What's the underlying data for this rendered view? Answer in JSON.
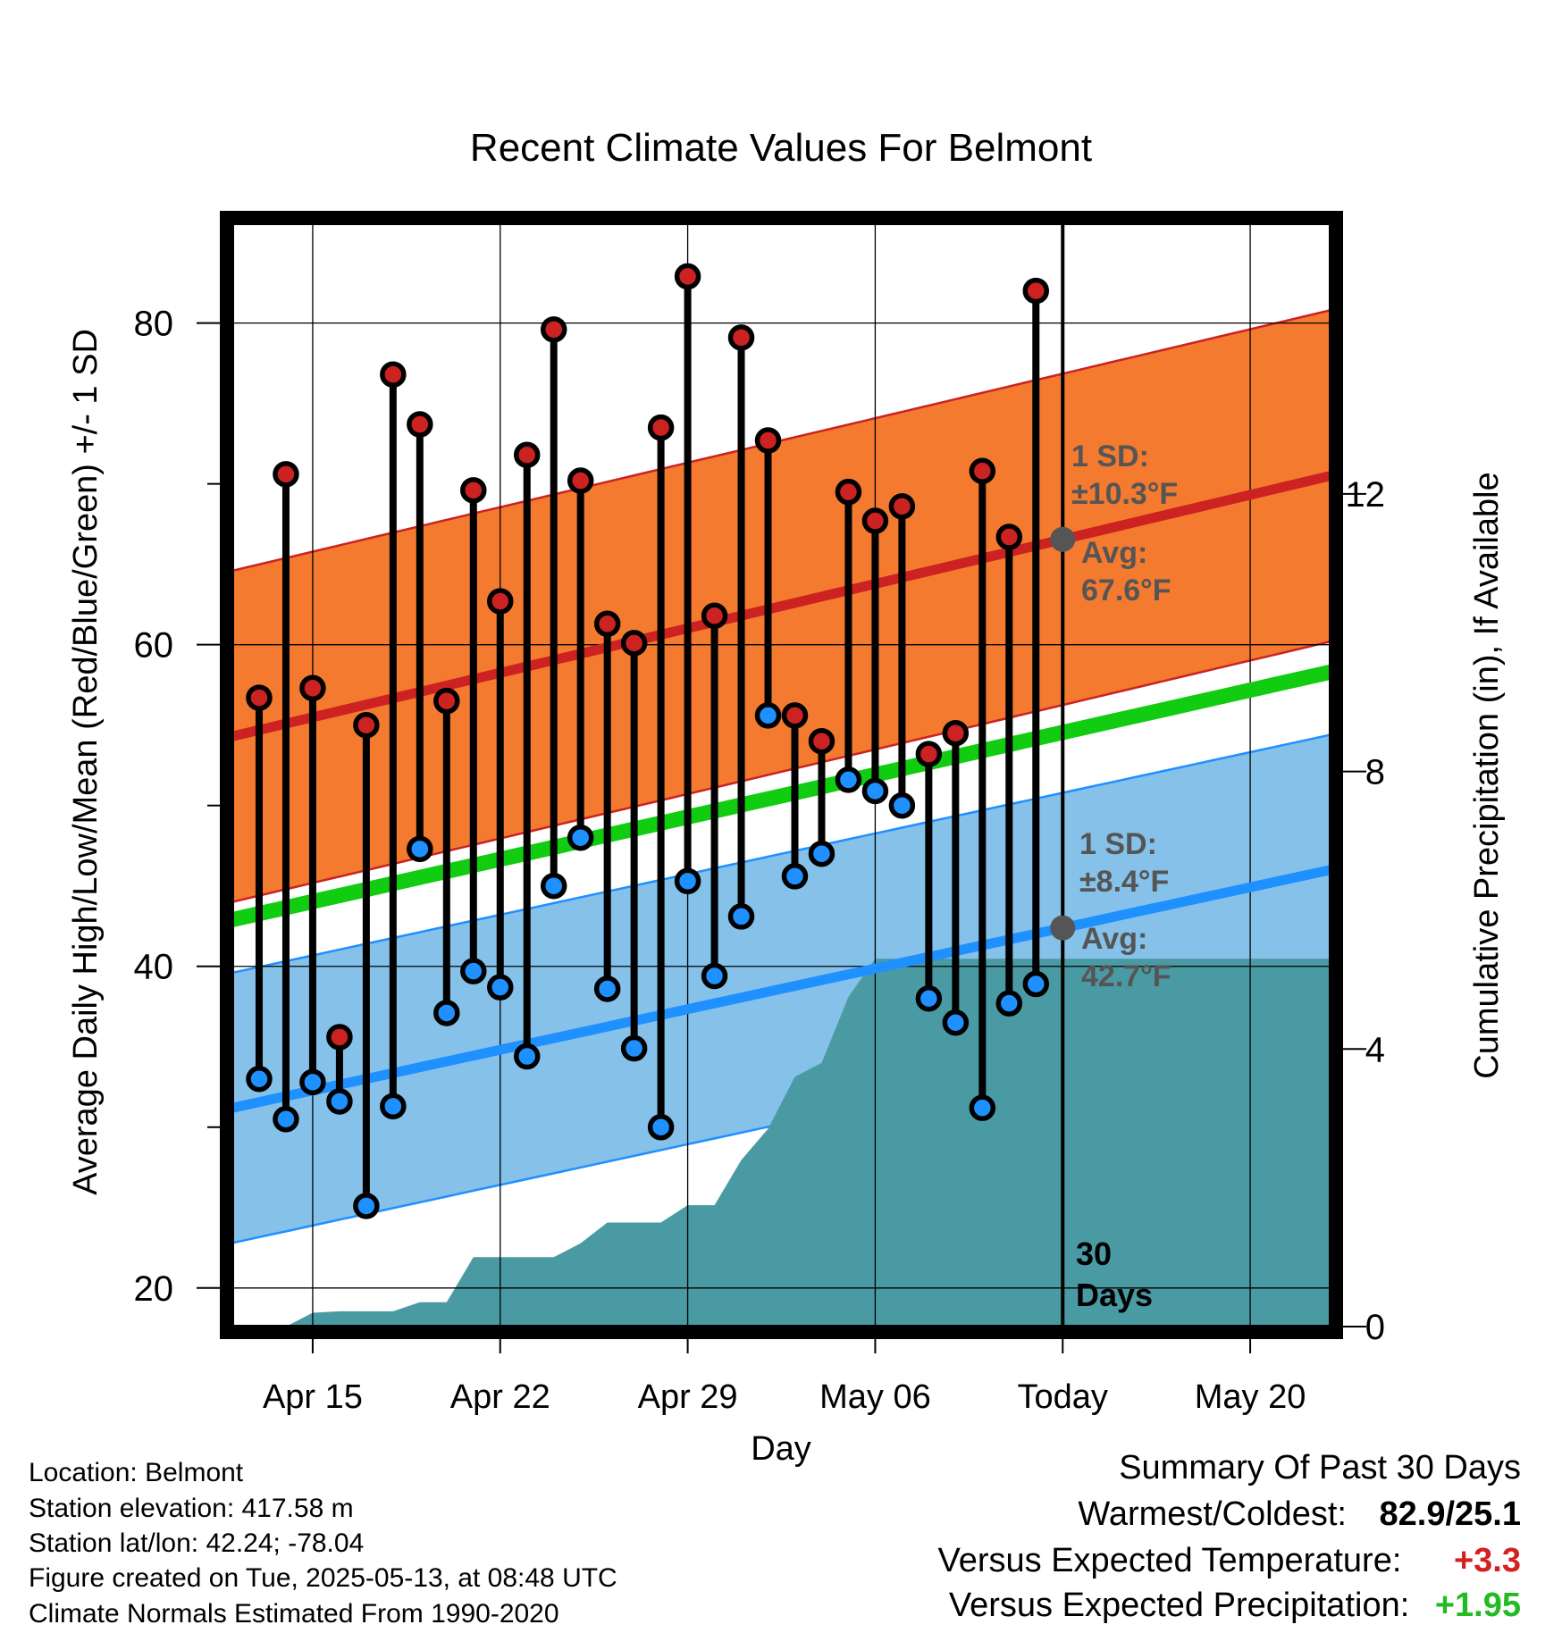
{
  "chart_data": {
    "type": "line",
    "title": "Recent Climate Values For Belmont",
    "xlabel": "Day",
    "ylabel": "Average Daily High/Low/Mean (Red/Blue/Green) +/- 1 SD",
    "y2label": "Cumulative Precipitation (in), If Available",
    "x_ticks": [
      "Apr 15",
      "Apr 22",
      "Apr 29",
      "May 06",
      "Today",
      "May 20"
    ],
    "x_tick_dates": [
      "2025-04-15",
      "2025-04-22",
      "2025-04-29",
      "2025-05-06",
      "2025-05-13",
      "2025-05-20"
    ],
    "xlim": [
      "2025-04-12",
      "2025-05-23"
    ],
    "ylim": [
      17.6,
      86.2
    ],
    "y_ticks": [
      20,
      40,
      60,
      80
    ],
    "y2lim": [
      0,
      15.9
    ],
    "y2_ticks": [
      0,
      4,
      8,
      12
    ],
    "grid": true,
    "today": "2025-05-13",
    "dates": [
      "2025-04-13",
      "2025-04-14",
      "2025-04-15",
      "2025-04-16",
      "2025-04-17",
      "2025-04-18",
      "2025-04-19",
      "2025-04-20",
      "2025-04-21",
      "2025-04-22",
      "2025-04-23",
      "2025-04-24",
      "2025-04-25",
      "2025-04-26",
      "2025-04-27",
      "2025-04-28",
      "2025-04-29",
      "2025-04-30",
      "2025-05-01",
      "2025-05-02",
      "2025-05-03",
      "2025-05-04",
      "2025-05-05",
      "2025-05-06",
      "2025-05-07",
      "2025-05-08",
      "2025-05-09",
      "2025-05-10",
      "2025-05-11",
      "2025-05-12"
    ],
    "series": [
      {
        "name": "High",
        "color": "#cc2222",
        "values": [
          56.7,
          70.6,
          57.3,
          35.6,
          55.0,
          76.8,
          73.7,
          56.5,
          69.6,
          62.7,
          71.8,
          79.6,
          70.2,
          61.3,
          60.1,
          73.5,
          82.9,
          61.8,
          79.1,
          72.7,
          55.6,
          54.0,
          69.5,
          67.7,
          68.6,
          53.2,
          54.5,
          70.8,
          66.7,
          82.0
        ]
      },
      {
        "name": "Low",
        "color": "#1e90ff",
        "values": [
          33.0,
          30.5,
          32.8,
          31.6,
          25.1,
          31.3,
          47.3,
          37.1,
          39.7,
          38.7,
          34.4,
          45.0,
          48.0,
          38.6,
          34.9,
          30.0,
          45.3,
          39.4,
          43.1,
          55.6,
          45.6,
          47.0,
          51.6,
          50.9,
          50.0,
          38.0,
          36.5,
          31.2,
          37.7,
          38.9
        ]
      }
    ],
    "normals": {
      "xlim": [
        "2025-04-12",
        "2025-05-23"
      ],
      "high_avg": [
        54.3,
        70.5
      ],
      "high_sd": 10.3,
      "low_avg": [
        31.2,
        46.0
      ],
      "low_sd": 8.4,
      "mean_avg": [
        42.9,
        58.3
      ]
    },
    "precip": {
      "dates": [
        "2025-04-12",
        "2025-04-13",
        "2025-04-14",
        "2025-04-15",
        "2025-04-16",
        "2025-04-17",
        "2025-04-18",
        "2025-04-19",
        "2025-04-20",
        "2025-04-21",
        "2025-04-22",
        "2025-04-23",
        "2025-04-24",
        "2025-04-25",
        "2025-04-26",
        "2025-04-27",
        "2025-04-28",
        "2025-04-29",
        "2025-04-30",
        "2025-05-01",
        "2025-05-02",
        "2025-05-03",
        "2025-05-04",
        "2025-05-05",
        "2025-05-06",
        "2025-05-23"
      ],
      "values": [
        0,
        0,
        0,
        0.2,
        0.22,
        0.22,
        0.22,
        0.35,
        0.35,
        1.0,
        1.0,
        1.0,
        1.0,
        1.2,
        1.5,
        1.5,
        1.5,
        1.75,
        1.75,
        2.4,
        2.85,
        3.6,
        3.8,
        4.75,
        5.3,
        5.3
      ]
    },
    "annotations": {
      "high_sd_label": "1 SD:",
      "high_sd_value": "±10.3°F",
      "high_avg_label": "Avg:",
      "high_avg_value": "67.6°F",
      "low_sd_label": "1 SD:",
      "low_sd_value": "±8.4°F",
      "low_avg_label": "Avg:",
      "low_avg_value": "42.7°F",
      "days_line1": "30",
      "days_line2": "Days"
    }
  },
  "info": {
    "location": "Location: Belmont",
    "elevation": "Station elevation: 417.58 m",
    "latlon": "Station lat/lon: 42.24; -78.04",
    "created": "Figure created on Tue, 2025-05-13, at 08:48 UTC",
    "normals": "Climate Normals Estimated From 1990-2020"
  },
  "summary": {
    "title": "Summary Of Past 30 Days",
    "warmest_label": "Warmest/Coldest:",
    "warmest_value": "82.9/25.1",
    "temp_label": "Versus Expected Temperature:",
    "temp_value": "+3.3",
    "precip_label": "Versus Expected Precipitation:",
    "precip_value": "+1.95"
  },
  "colors": {
    "high_band": "#f47a30",
    "high_line": "#cc2222",
    "low_band": "#85c1e9",
    "low_line": "#1e90ff",
    "mean_line": "#11cc11",
    "precip_fill": "#4a9aa3",
    "annotation": "#555555",
    "temp_anomaly": "#d42020",
    "precip_anomaly": "#22bb22"
  }
}
